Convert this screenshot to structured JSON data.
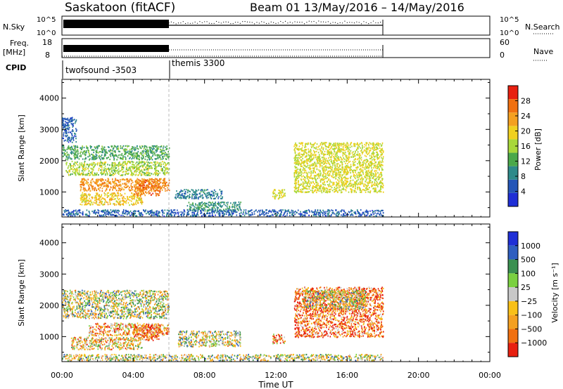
{
  "header": {
    "site": "Saskatoon (fitACF)",
    "beam_and_dates": "Beam 01  13/May/2016 – 14/May/2016"
  },
  "top_panels": {
    "nsky": {
      "label": "N.Sky",
      "left_ticks": [
        "10^5",
        "10^0"
      ],
      "right_ticks": [
        "10^5",
        "10^0"
      ],
      "right_label": "N.Search"
    },
    "freq": {
      "label_line1": "Freq.",
      "label_line2": "[MHz]",
      "left_ticks": [
        "18",
        "8"
      ],
      "right_ticks": [
        "60",
        "0"
      ],
      "right_label": "Nave"
    },
    "cpid": {
      "label": "CPID",
      "segments": [
        {
          "name": "twofsound -3503",
          "start_hour": 0,
          "end_hour": 6
        },
        {
          "name": "themis 3300",
          "start_hour": 6,
          "end_hour": 18
        }
      ]
    }
  },
  "chart_data": [
    {
      "type": "heatmap",
      "panel": "power",
      "ylabel": "Slant Range [km]",
      "ylim": [
        200,
        4600
      ],
      "y_ticks": [
        1000,
        2000,
        3000,
        4000
      ],
      "x_range_hours": [
        0,
        24
      ],
      "colorbar": {
        "label": "Power [dB]",
        "ticks": [
          4,
          8,
          12,
          16,
          20,
          24,
          28
        ],
        "range": [
          0,
          32
        ],
        "colors": [
          "#1f2fd6",
          "#2456b8",
          "#2e8a8a",
          "#4aa84a",
          "#a8d83a",
          "#f0d020",
          "#f4a020",
          "#f07010",
          "#e82010"
        ]
      },
      "regions": [
        {
          "start_hour": 0.0,
          "end_hour": 6.0,
          "range_min_km": 2050,
          "range_max_km": 2500,
          "level": 12
        },
        {
          "start_hour": 0.2,
          "end_hour": 6.0,
          "range_min_km": 1550,
          "range_max_km": 2000,
          "level": 16
        },
        {
          "start_hour": 1.0,
          "end_hour": 6.0,
          "range_min_km": 1050,
          "range_max_km": 1450,
          "level": 24
        },
        {
          "start_hour": 1.0,
          "end_hour": 4.5,
          "range_min_km": 600,
          "range_max_km": 1000,
          "level": 20
        },
        {
          "start_hour": 4.0,
          "end_hour": 5.5,
          "range_min_km": 900,
          "range_max_km": 1400,
          "level": 26
        },
        {
          "start_hour": 0.0,
          "end_hour": 0.8,
          "range_min_km": 2600,
          "range_max_km": 3400,
          "level": 6
        },
        {
          "start_hour": 6.3,
          "end_hour": 9.0,
          "range_min_km": 800,
          "range_max_km": 1100,
          "level": 8
        },
        {
          "start_hour": 7.0,
          "end_hour": 10.0,
          "range_min_km": 400,
          "range_max_km": 700,
          "level": 10
        },
        {
          "start_hour": 11.8,
          "end_hour": 12.5,
          "range_min_km": 800,
          "range_max_km": 1100,
          "level": 18
        },
        {
          "start_hour": 13.0,
          "end_hour": 18.0,
          "range_min_km": 1000,
          "range_max_km": 2600,
          "level": 18
        },
        {
          "start_hour": 0.0,
          "end_hour": 18.0,
          "range_min_km": 250,
          "range_max_km": 450,
          "level": 6
        }
      ]
    },
    {
      "type": "heatmap",
      "panel": "velocity",
      "ylabel": "Slant Range [km]",
      "xlabel": "Time UT",
      "ylim": [
        200,
        4600
      ],
      "y_ticks": [
        1000,
        2000,
        3000,
        4000
      ],
      "x_ticks": [
        "00:00",
        "04:00",
        "08:00",
        "12:00",
        "16:00",
        "20:00",
        "00:00"
      ],
      "x_range_hours": [
        0,
        24
      ],
      "colorbar": {
        "label": "Velocity [m s⁻¹]",
        "ticks": [
          "1000",
          "500",
          "100",
          "25",
          "−25",
          "−100",
          "−500",
          "−1000"
        ],
        "colors": [
          "#1f2fd6",
          "#2f5ec0",
          "#3a9050",
          "#7ad040",
          "#c8c8c8",
          "#f8c018",
          "#f4a020",
          "#f07010",
          "#e82010"
        ]
      },
      "regions": [
        {
          "start_hour": 0.0,
          "end_hour": 6.0,
          "range_min_km": 1600,
          "range_max_km": 2500,
          "level": 4
        },
        {
          "start_hour": 1.5,
          "end_hour": 6.0,
          "range_min_km": 1050,
          "range_max_km": 1450,
          "level": 6
        },
        {
          "start_hour": 0.5,
          "end_hour": 4.5,
          "range_min_km": 600,
          "range_max_km": 1000,
          "level": 5
        },
        {
          "start_hour": 4.0,
          "end_hour": 5.5,
          "range_min_km": 900,
          "range_max_km": 1400,
          "level": 7
        },
        {
          "start_hour": 6.5,
          "end_hour": 10.0,
          "range_min_km": 700,
          "range_max_km": 1200,
          "level": 4
        },
        {
          "start_hour": 11.8,
          "end_hour": 12.5,
          "range_min_km": 800,
          "range_max_km": 1100,
          "level": 6
        },
        {
          "start_hour": 13.0,
          "end_hour": 18.0,
          "range_min_km": 1000,
          "range_max_km": 2600,
          "level": 7
        },
        {
          "start_hour": 13.5,
          "end_hour": 17.0,
          "range_min_km": 1900,
          "range_max_km": 2500,
          "level": 4
        },
        {
          "start_hour": 0.0,
          "end_hour": 18.0,
          "range_min_km": 250,
          "range_max_km": 450,
          "level": 4
        }
      ]
    }
  ]
}
